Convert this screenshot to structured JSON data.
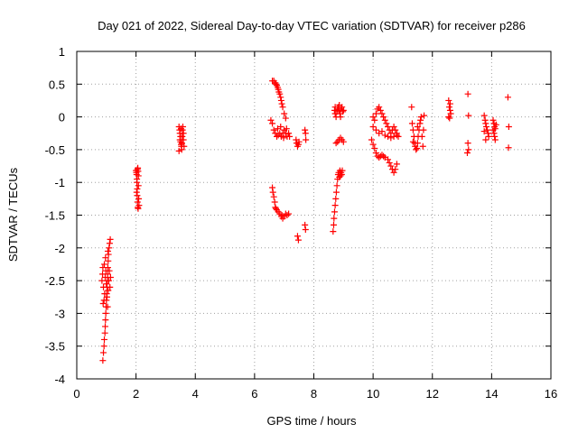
{
  "chart_data": {
    "type": "scatter",
    "title": "Day 021 of 2022, Sidereal Day-to-day VTEC variation (SDTVAR) for receiver p286",
    "xlabel": "GPS time / hours",
    "ylabel": "SDTVAR / TECUs",
    "xlim": [
      0,
      16
    ],
    "ylim": [
      -4,
      1
    ],
    "x_ticks": [
      0,
      2,
      4,
      6,
      8,
      10,
      12,
      14,
      16
    ],
    "x_tick_labels": [
      "0",
      "2",
      "4",
      "6",
      "8",
      "10",
      "12",
      "14",
      "16"
    ],
    "y_ticks": [
      -4,
      -3.5,
      -3,
      -2.5,
      -2,
      -1.5,
      -1,
      -0.5,
      0,
      0.5,
      1
    ],
    "y_tick_labels": [
      "-4",
      "-3.5",
      "-3",
      "-2.5",
      "-2",
      "-1.5",
      "-1",
      "-0.5",
      "0",
      "0.5",
      "1"
    ],
    "grid": true,
    "marker": "plus",
    "color": "#ff0000",
    "series": [
      {
        "name": "SDTVAR",
        "points": [
          [
            0.88,
            -3.72
          ],
          [
            0.9,
            -3.6
          ],
          [
            0.92,
            -3.5
          ],
          [
            0.93,
            -3.4
          ],
          [
            0.95,
            -3.3
          ],
          [
            0.96,
            -3.2
          ],
          [
            0.97,
            -3.1
          ],
          [
            0.98,
            -3.0
          ],
          [
            0.99,
            -2.9
          ],
          [
            1.0,
            -2.8
          ],
          [
            1.01,
            -2.7
          ],
          [
            1.02,
            -2.6
          ],
          [
            1.03,
            -2.5
          ],
          [
            1.04,
            -2.4
          ],
          [
            1.05,
            -2.3
          ],
          [
            1.06,
            -2.2
          ],
          [
            1.07,
            -2.1
          ],
          [
            1.09,
            -2.0
          ],
          [
            1.11,
            -1.93
          ],
          [
            1.13,
            -1.87
          ],
          [
            0.85,
            -2.5
          ],
          [
            0.87,
            -2.4
          ],
          [
            0.88,
            -2.3
          ],
          [
            0.9,
            -2.6
          ],
          [
            0.92,
            -2.8
          ],
          [
            0.94,
            -2.7
          ],
          [
            0.96,
            -2.45
          ],
          [
            0.98,
            -2.35
          ],
          [
            1.0,
            -2.55
          ],
          [
            1.02,
            -2.75
          ],
          [
            1.04,
            -2.9
          ],
          [
            1.06,
            -2.65
          ],
          [
            1.08,
            -2.5
          ],
          [
            1.1,
            -2.35
          ],
          [
            1.12,
            -2.6
          ],
          [
            1.14,
            -2.45
          ],
          [
            0.89,
            -2.85
          ],
          [
            0.93,
            -2.25
          ],
          [
            0.97,
            -2.15
          ],
          [
            1.05,
            -2.05
          ],
          [
            2.0,
            -0.82
          ],
          [
            2.01,
            -0.85
          ],
          [
            2.02,
            -0.88
          ],
          [
            2.03,
            -0.95
          ],
          [
            2.03,
            -1.0
          ],
          [
            2.04,
            -1.1
          ],
          [
            2.04,
            -1.2
          ],
          [
            2.05,
            -1.3
          ],
          [
            2.06,
            -1.38
          ],
          [
            2.07,
            -1.4
          ],
          [
            2.05,
            -0.8
          ],
          [
            2.06,
            -0.78
          ],
          [
            2.07,
            -0.83
          ],
          [
            2.08,
            -0.9
          ],
          [
            2.08,
            -1.05
          ],
          [
            2.09,
            -1.25
          ],
          [
            2.1,
            -1.35
          ],
          [
            2.02,
            -1.15
          ],
          [
            3.45,
            -0.15
          ],
          [
            3.47,
            -0.2
          ],
          [
            3.48,
            -0.25
          ],
          [
            3.5,
            -0.3
          ],
          [
            3.5,
            -0.38
          ],
          [
            3.52,
            -0.42
          ],
          [
            3.53,
            -0.45
          ],
          [
            3.54,
            -0.5
          ],
          [
            3.45,
            -0.52
          ],
          [
            3.55,
            -0.4
          ],
          [
            3.56,
            -0.3
          ],
          [
            3.57,
            -0.2
          ],
          [
            3.58,
            -0.15
          ],
          [
            3.6,
            -0.25
          ],
          [
            3.6,
            -0.35
          ],
          [
            3.62,
            -0.45
          ],
          [
            3.48,
            -0.35
          ],
          [
            3.52,
            -0.18
          ],
          [
            6.6,
            0.55
          ],
          [
            6.65,
            0.55
          ],
          [
            6.7,
            0.52
          ],
          [
            6.75,
            0.48
          ],
          [
            6.8,
            0.42
          ],
          [
            6.85,
            0.35
          ],
          [
            6.9,
            0.25
          ],
          [
            6.95,
            0.15
          ],
          [
            7.0,
            0.05
          ],
          [
            7.05,
            -0.02
          ],
          [
            6.72,
            0.5
          ],
          [
            6.78,
            0.45
          ],
          [
            6.82,
            0.38
          ],
          [
            6.88,
            0.3
          ],
          [
            6.92,
            0.2
          ],
          [
            6.55,
            -0.05
          ],
          [
            6.6,
            -0.1
          ],
          [
            6.65,
            -0.2
          ],
          [
            6.7,
            -0.25
          ],
          [
            6.75,
            -0.3
          ],
          [
            6.8,
            -0.28
          ],
          [
            6.85,
            -0.25
          ],
          [
            6.9,
            -0.3
          ],
          [
            6.95,
            -0.25
          ],
          [
            7.0,
            -0.2
          ],
          [
            7.05,
            -0.25
          ],
          [
            7.1,
            -0.3
          ],
          [
            7.15,
            -0.25
          ],
          [
            6.78,
            -0.18
          ],
          [
            6.88,
            -0.15
          ],
          [
            6.98,
            -0.32
          ],
          [
            7.08,
            -0.18
          ],
          [
            7.18,
            -0.3
          ],
          [
            6.6,
            -1.08
          ],
          [
            6.62,
            -1.15
          ],
          [
            6.65,
            -1.22
          ],
          [
            6.68,
            -1.3
          ],
          [
            6.7,
            -1.38
          ],
          [
            6.75,
            -1.42
          ],
          [
            6.8,
            -1.45
          ],
          [
            6.85,
            -1.48
          ],
          [
            6.9,
            -1.52
          ],
          [
            6.95,
            -1.55
          ],
          [
            7.0,
            -1.52
          ],
          [
            7.05,
            -1.48
          ],
          [
            7.1,
            -1.5
          ],
          [
            7.15,
            -1.48
          ],
          [
            6.72,
            -1.4
          ],
          [
            6.92,
            -1.5
          ],
          [
            7.4,
            -0.35
          ],
          [
            7.42,
            -0.4
          ],
          [
            7.45,
            -0.45
          ],
          [
            7.48,
            -0.42
          ],
          [
            7.5,
            -0.38
          ],
          [
            7.45,
            -1.82
          ],
          [
            7.48,
            -1.88
          ],
          [
            7.7,
            -0.2
          ],
          [
            7.72,
            -0.25
          ],
          [
            7.73,
            -0.35
          ],
          [
            7.7,
            -1.65
          ],
          [
            7.72,
            -1.72
          ],
          [
            8.65,
            -1.75
          ],
          [
            8.67,
            -1.65
          ],
          [
            8.68,
            -1.55
          ],
          [
            8.7,
            -1.45
          ],
          [
            8.72,
            -1.35
          ],
          [
            8.74,
            -1.25
          ],
          [
            8.76,
            -1.15
          ],
          [
            8.78,
            -1.05
          ],
          [
            8.8,
            -0.95
          ],
          [
            8.82,
            -0.88
          ],
          [
            8.84,
            -0.85
          ],
          [
            8.86,
            -0.92
          ],
          [
            8.88,
            -0.82
          ],
          [
            8.9,
            -0.9
          ],
          [
            8.92,
            -0.85
          ],
          [
            8.94,
            -0.88
          ],
          [
            8.96,
            -0.82
          ],
          [
            8.7,
            0.1
          ],
          [
            8.72,
            0.05
          ],
          [
            8.75,
            0.0
          ],
          [
            8.78,
            0.08
          ],
          [
            8.8,
            0.12
          ],
          [
            8.82,
            0.15
          ],
          [
            8.85,
            0.1
          ],
          [
            8.88,
            0.05
          ],
          [
            8.9,
            0.0
          ],
          [
            8.92,
            0.12
          ],
          [
            8.95,
            0.15
          ],
          [
            8.98,
            0.08
          ],
          [
            9.0,
            0.1
          ],
          [
            8.72,
            0.15
          ],
          [
            8.86,
            0.18
          ],
          [
            8.75,
            -0.4
          ],
          [
            8.8,
            -0.38
          ],
          [
            8.85,
            -0.35
          ],
          [
            8.9,
            -0.32
          ],
          [
            8.95,
            -0.35
          ],
          [
            9.0,
            -0.38
          ],
          [
            9.95,
            -0.35
          ],
          [
            10.0,
            -0.42
          ],
          [
            10.05,
            -0.48
          ],
          [
            10.1,
            -0.55
          ],
          [
            10.15,
            -0.6
          ],
          [
            10.2,
            -0.62
          ],
          [
            10.25,
            -0.6
          ],
          [
            10.3,
            -0.58
          ],
          [
            10.35,
            -0.6
          ],
          [
            10.4,
            -0.62
          ],
          [
            10.5,
            -0.65
          ],
          [
            10.55,
            -0.7
          ],
          [
            10.6,
            -0.75
          ],
          [
            10.65,
            -0.8
          ],
          [
            10.7,
            -0.85
          ],
          [
            10.75,
            -0.8
          ],
          [
            10.8,
            -0.72
          ],
          [
            10.0,
            0.0
          ],
          [
            10.05,
            -0.05
          ],
          [
            10.1,
            0.05
          ],
          [
            10.15,
            0.12
          ],
          [
            10.2,
            0.15
          ],
          [
            10.25,
            0.1
          ],
          [
            10.3,
            0.05
          ],
          [
            10.35,
            0.0
          ],
          [
            10.4,
            -0.05
          ],
          [
            10.45,
            -0.1
          ],
          [
            10.5,
            -0.15
          ],
          [
            10.55,
            -0.2
          ],
          [
            10.6,
            -0.25
          ],
          [
            10.65,
            -0.2
          ],
          [
            10.7,
            -0.15
          ],
          [
            10.75,
            -0.2
          ],
          [
            10.8,
            -0.25
          ],
          [
            10.85,
            -0.3
          ],
          [
            10.0,
            -0.15
          ],
          [
            10.1,
            -0.2
          ],
          [
            10.2,
            -0.25
          ],
          [
            10.3,
            -0.22
          ],
          [
            10.4,
            -0.28
          ],
          [
            10.5,
            -0.3
          ],
          [
            10.6,
            -0.32
          ],
          [
            10.7,
            -0.3
          ],
          [
            10.8,
            -0.28
          ],
          [
            11.3,
            0.15
          ],
          [
            11.32,
            -0.1
          ],
          [
            11.35,
            -0.2
          ],
          [
            11.38,
            -0.3
          ],
          [
            11.4,
            -0.4
          ],
          [
            11.42,
            -0.45
          ],
          [
            11.45,
            -0.5
          ],
          [
            11.48,
            -0.48
          ],
          [
            11.5,
            -0.4
          ],
          [
            11.52,
            -0.3
          ],
          [
            11.55,
            -0.2
          ],
          [
            11.58,
            -0.1
          ],
          [
            11.6,
            -0.05
          ],
          [
            11.62,
            0.0
          ],
          [
            11.65,
            -0.3
          ],
          [
            11.68,
            -0.45
          ],
          [
            11.7,
            -0.2
          ],
          [
            11.72,
            0.02
          ],
          [
            11.35,
            -0.38
          ],
          [
            11.5,
            -0.15
          ],
          [
            12.55,
            0.25
          ],
          [
            12.57,
            0.15
          ],
          [
            12.6,
            0.1
          ],
          [
            12.62,
            0.05
          ],
          [
            12.55,
            0.0
          ],
          [
            12.58,
            -0.02
          ],
          [
            12.6,
            0.2
          ],
          [
            13.2,
            0.35
          ],
          [
            13.22,
            0.02
          ],
          [
            13.2,
            -0.4
          ],
          [
            13.22,
            -0.5
          ],
          [
            13.18,
            -0.55
          ],
          [
            13.75,
            0.02
          ],
          [
            13.78,
            -0.05
          ],
          [
            13.8,
            -0.1
          ],
          [
            13.82,
            -0.15
          ],
          [
            13.85,
            -0.2
          ],
          [
            13.88,
            -0.25
          ],
          [
            13.9,
            -0.3
          ],
          [
            13.8,
            -0.35
          ],
          [
            13.75,
            -0.22
          ],
          [
            14.05,
            -0.05
          ],
          [
            14.08,
            -0.1
          ],
          [
            14.1,
            -0.15
          ],
          [
            14.12,
            -0.18
          ],
          [
            14.15,
            -0.12
          ],
          [
            14.08,
            -0.25
          ],
          [
            14.1,
            -0.3
          ],
          [
            14.12,
            -0.35
          ],
          [
            14.05,
            -0.2
          ],
          [
            14.55,
            0.3
          ],
          [
            14.58,
            -0.15
          ],
          [
            14.57,
            -0.47
          ]
        ]
      }
    ]
  }
}
